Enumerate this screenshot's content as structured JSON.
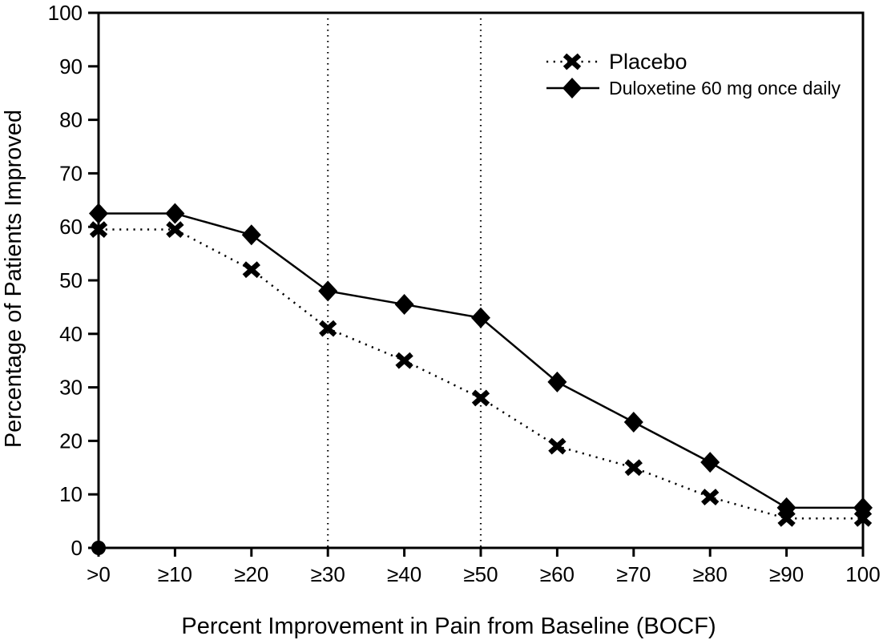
{
  "chart_data": {
    "type": "line",
    "categories": [
      ">0",
      "≥10",
      "≥20",
      "≥30",
      "≥40",
      "≥50",
      "≥60",
      "≥70",
      "≥80",
      "≥90",
      "100"
    ],
    "series": [
      {
        "name": "Placebo",
        "values": [
          59.5,
          59.5,
          52,
          41,
          35,
          28,
          19,
          15,
          9.5,
          5.5,
          5.5
        ],
        "marker": "x-cross",
        "line_style": "dotted",
        "color": "#000000"
      },
      {
        "name": "Duloxetine 60 mg once daily",
        "values": [
          62.5,
          62.5,
          58.5,
          48,
          45.5,
          43,
          31,
          23.5,
          16,
          7.5,
          7.5
        ],
        "marker": "diamond",
        "line_style": "solid",
        "color": "#000000"
      }
    ],
    "title": "",
    "xlabel": "Percent Improvement in Pain from Baseline (BOCF)",
    "ylabel": "Percentage of Patients Improved",
    "ylim": [
      0,
      100
    ],
    "ytick_step": 10,
    "grid": false,
    "legend_position": "top-right-inside",
    "reference_lines": [
      {
        "at_category": "≥30",
        "orientation": "vertical",
        "style": "dotted"
      },
      {
        "at_category": "≥50",
        "orientation": "vertical",
        "style": "dotted"
      }
    ],
    "origin_point": {
      "x": ">0",
      "y": 0,
      "marker": "filled-circle"
    },
    "axis_color": "#000000",
    "background_color": "#ffffff"
  }
}
